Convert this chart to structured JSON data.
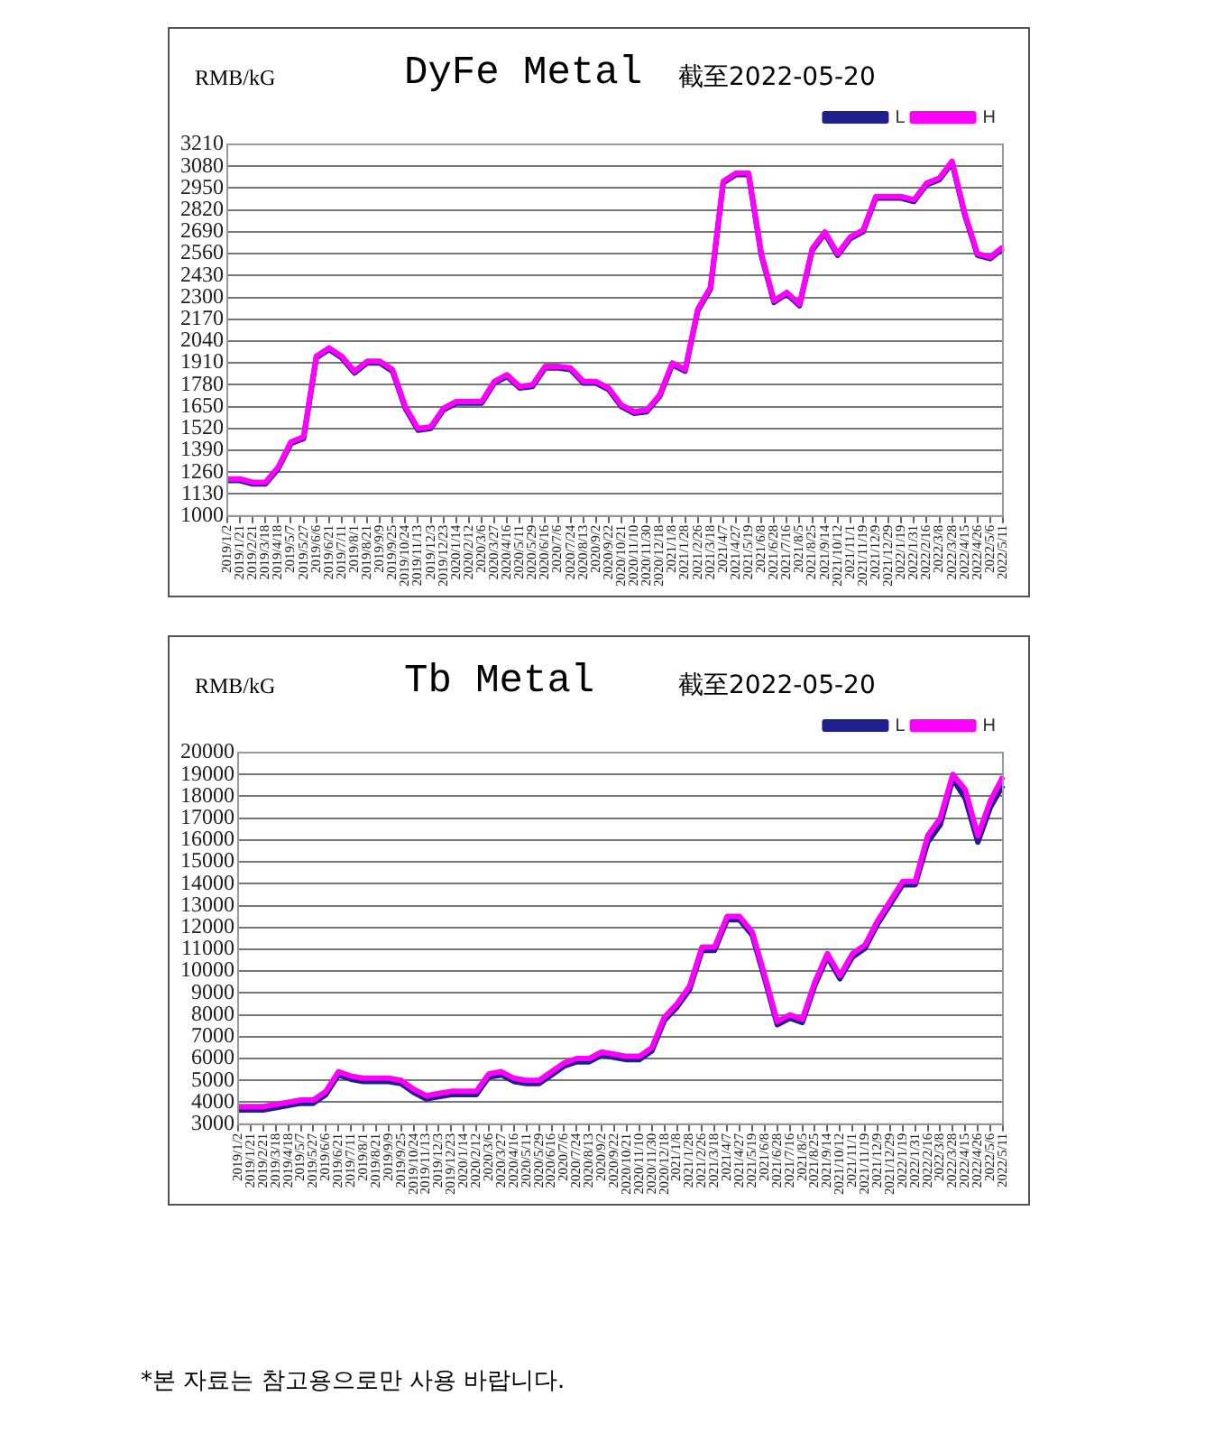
{
  "chart_data": [
    {
      "type": "line",
      "title": "DyFe Metal",
      "subtitle": "截至2022-05-20",
      "ylabel": "RMB/kG",
      "categories": [
        "2019/1/2",
        "2019/1/21",
        "2019/2/21",
        "2019/3/18",
        "2019/4/18",
        "2019/5/7",
        "2019/5/27",
        "2019/6/6",
        "2019/6/21",
        "2019/7/11",
        "2019/8/1",
        "2019/8/21",
        "2019/9/9",
        "2019/9/25",
        "2019/10/24",
        "2019/11/13",
        "2019/12/3",
        "2019/12/23",
        "2020/1/14",
        "2020/2/12",
        "2020/3/6",
        "2020/3/27",
        "2020/4/16",
        "2020/5/11",
        "2020/5/29",
        "2020/6/16",
        "2020/7/6",
        "2020/7/24",
        "2020/8/13",
        "2020/9/2",
        "2020/9/22",
        "2020/10/21",
        "2020/11/10",
        "2020/11/30",
        "2020/12/18",
        "2021/1/8",
        "2021/1/28",
        "2021/2/26",
        "2021/3/18",
        "2021/4/7",
        "2021/4/27",
        "2021/5/19",
        "2021/6/8",
        "2021/6/28",
        "2021/7/16",
        "2021/8/5",
        "2021/8/25",
        "2021/9/14",
        "2021/10/12",
        "2021/11/1",
        "2021/11/19",
        "2021/12/9",
        "2021/12/29",
        "2022/1/19",
        "2022/1/31",
        "2022/2/16",
        "2022/3/8",
        "2022/3/28",
        "2022/4/15",
        "2022/4/26",
        "2022/5/6",
        "2022/5/11"
      ],
      "series": [
        {
          "name": "L",
          "color": "#1f1f8f",
          "values": [
            1210,
            1210,
            1190,
            1190,
            1280,
            1430,
            1460,
            1940,
            1990,
            1940,
            1850,
            1910,
            1910,
            1860,
            1640,
            1510,
            1520,
            1630,
            1670,
            1670,
            1670,
            1790,
            1830,
            1760,
            1770,
            1880,
            1880,
            1870,
            1790,
            1790,
            1750,
            1650,
            1610,
            1620,
            1710,
            1900,
            1860,
            2220,
            2350,
            2980,
            3030,
            3030,
            2550,
            2270,
            2320,
            2250,
            2580,
            2680,
            2550,
            2650,
            2690,
            2890,
            2890,
            2890,
            2870,
            2970,
            3000,
            3100,
            2790,
            2550,
            2530,
            2590
          ]
        },
        {
          "name": "H",
          "color": "#ff00ff",
          "values": [
            1220,
            1220,
            1200,
            1200,
            1290,
            1440,
            1470,
            1950,
            2000,
            1950,
            1860,
            1920,
            1920,
            1870,
            1650,
            1520,
            1530,
            1640,
            1680,
            1680,
            1680,
            1800,
            1840,
            1770,
            1780,
            1890,
            1890,
            1880,
            1800,
            1800,
            1760,
            1660,
            1620,
            1630,
            1720,
            1910,
            1870,
            2230,
            2360,
            2990,
            3040,
            3040,
            2560,
            2280,
            2330,
            2260,
            2590,
            2690,
            2560,
            2660,
            2700,
            2900,
            2900,
            2900,
            2880,
            2980,
            3010,
            3110,
            2800,
            2560,
            2540,
            2600
          ]
        }
      ],
      "ylim": [
        1000,
        3210
      ],
      "yticks": [
        1000,
        1130,
        1260,
        1390,
        1520,
        1650,
        1780,
        1910,
        2040,
        2170,
        2300,
        2430,
        2560,
        2690,
        2820,
        2950,
        3080,
        3210
      ],
      "grid": "y",
      "legend": "top right",
      "marker": "none",
      "line_style": "solid"
    },
    {
      "type": "line",
      "title": "Tb Metal",
      "subtitle": "截至2022-05-20",
      "ylabel": "RMB/kG",
      "categories": [
        "2019/1/2",
        "2019/1/21",
        "2019/2/21",
        "2019/3/18",
        "2019/4/18",
        "2019/5/7",
        "2019/5/27",
        "2019/6/6",
        "2019/6/21",
        "2019/7/11",
        "2019/8/1",
        "2019/8/21",
        "2019/9/9",
        "2019/9/25",
        "2019/10/24",
        "2019/11/13",
        "2019/12/3",
        "2019/12/23",
        "2020/1/14",
        "2020/2/12",
        "2020/3/6",
        "2020/3/27",
        "2020/4/16",
        "2020/5/11",
        "2020/5/29",
        "2020/6/16",
        "2020/7/6",
        "2020/7/24",
        "2020/8/13",
        "2020/9/2",
        "2020/9/22",
        "2020/10/21",
        "2020/11/10",
        "2020/11/30",
        "2020/12/18",
        "2021/1/8",
        "2021/1/28",
        "2021/2/26",
        "2021/3/18",
        "2021/4/7",
        "2021/4/27",
        "2021/5/19",
        "2021/6/8",
        "2021/6/28",
        "2021/7/16",
        "2021/8/5",
        "2021/8/25",
        "2021/9/14",
        "2021/10/12",
        "2021/11/1",
        "2021/11/19",
        "2021/12/9",
        "2021/12/29",
        "2022/1/19",
        "2022/1/31",
        "2022/2/16",
        "2022/3/8",
        "2022/3/28",
        "2022/4/15",
        "2022/4/26",
        "2022/5/6",
        "2022/5/11"
      ],
      "series": [
        {
          "name": "L",
          "color": "#1f1f8f",
          "values": [
            3650,
            3650,
            3650,
            3750,
            3850,
            3950,
            3950,
            4350,
            5250,
            5050,
            4950,
            4950,
            4950,
            4850,
            4450,
            4150,
            4250,
            4350,
            4350,
            4350,
            5150,
            5250,
            4950,
            4850,
            4850,
            5250,
            5650,
            5850,
            5850,
            6150,
            6050,
            5950,
            5950,
            6350,
            7750,
            8350,
            9150,
            10950,
            10950,
            12350,
            12350,
            11650,
            9650,
            7550,
            7850,
            7650,
            9350,
            10650,
            9650,
            10650,
            11050,
            12150,
            13050,
            13950,
            13950,
            15900,
            16700,
            18800,
            17900,
            15900,
            17500,
            18500
          ]
        },
        {
          "name": "H",
          "color": "#ff00ff",
          "values": [
            3800,
            3800,
            3800,
            3900,
            4000,
            4100,
            4100,
            4500,
            5400,
            5200,
            5100,
            5100,
            5100,
            5000,
            4600,
            4300,
            4400,
            4500,
            4500,
            4500,
            5300,
            5400,
            5100,
            5000,
            5000,
            5400,
            5800,
            6000,
            6000,
            6300,
            6200,
            6100,
            6100,
            6500,
            7900,
            8500,
            9300,
            11100,
            11100,
            12500,
            12500,
            11800,
            9800,
            7700,
            8000,
            7800,
            9500,
            10800,
            9800,
            10800,
            11200,
            12300,
            13200,
            14100,
            14100,
            16200,
            17000,
            19000,
            18300,
            16200,
            17800,
            18900
          ]
        }
      ],
      "ylim": [
        3000,
        20000
      ],
      "yticks": [
        3000,
        4000,
        5000,
        6000,
        7000,
        8000,
        9000,
        10000,
        11000,
        12000,
        13000,
        14000,
        15000,
        16000,
        17000,
        18000,
        19000,
        20000
      ],
      "grid": "y",
      "legend": "top right",
      "marker": "none",
      "line_style": "solid",
      "annotations": [
        "*본 자료는 참고용으로만 사용 바랍니다."
      ]
    }
  ]
}
